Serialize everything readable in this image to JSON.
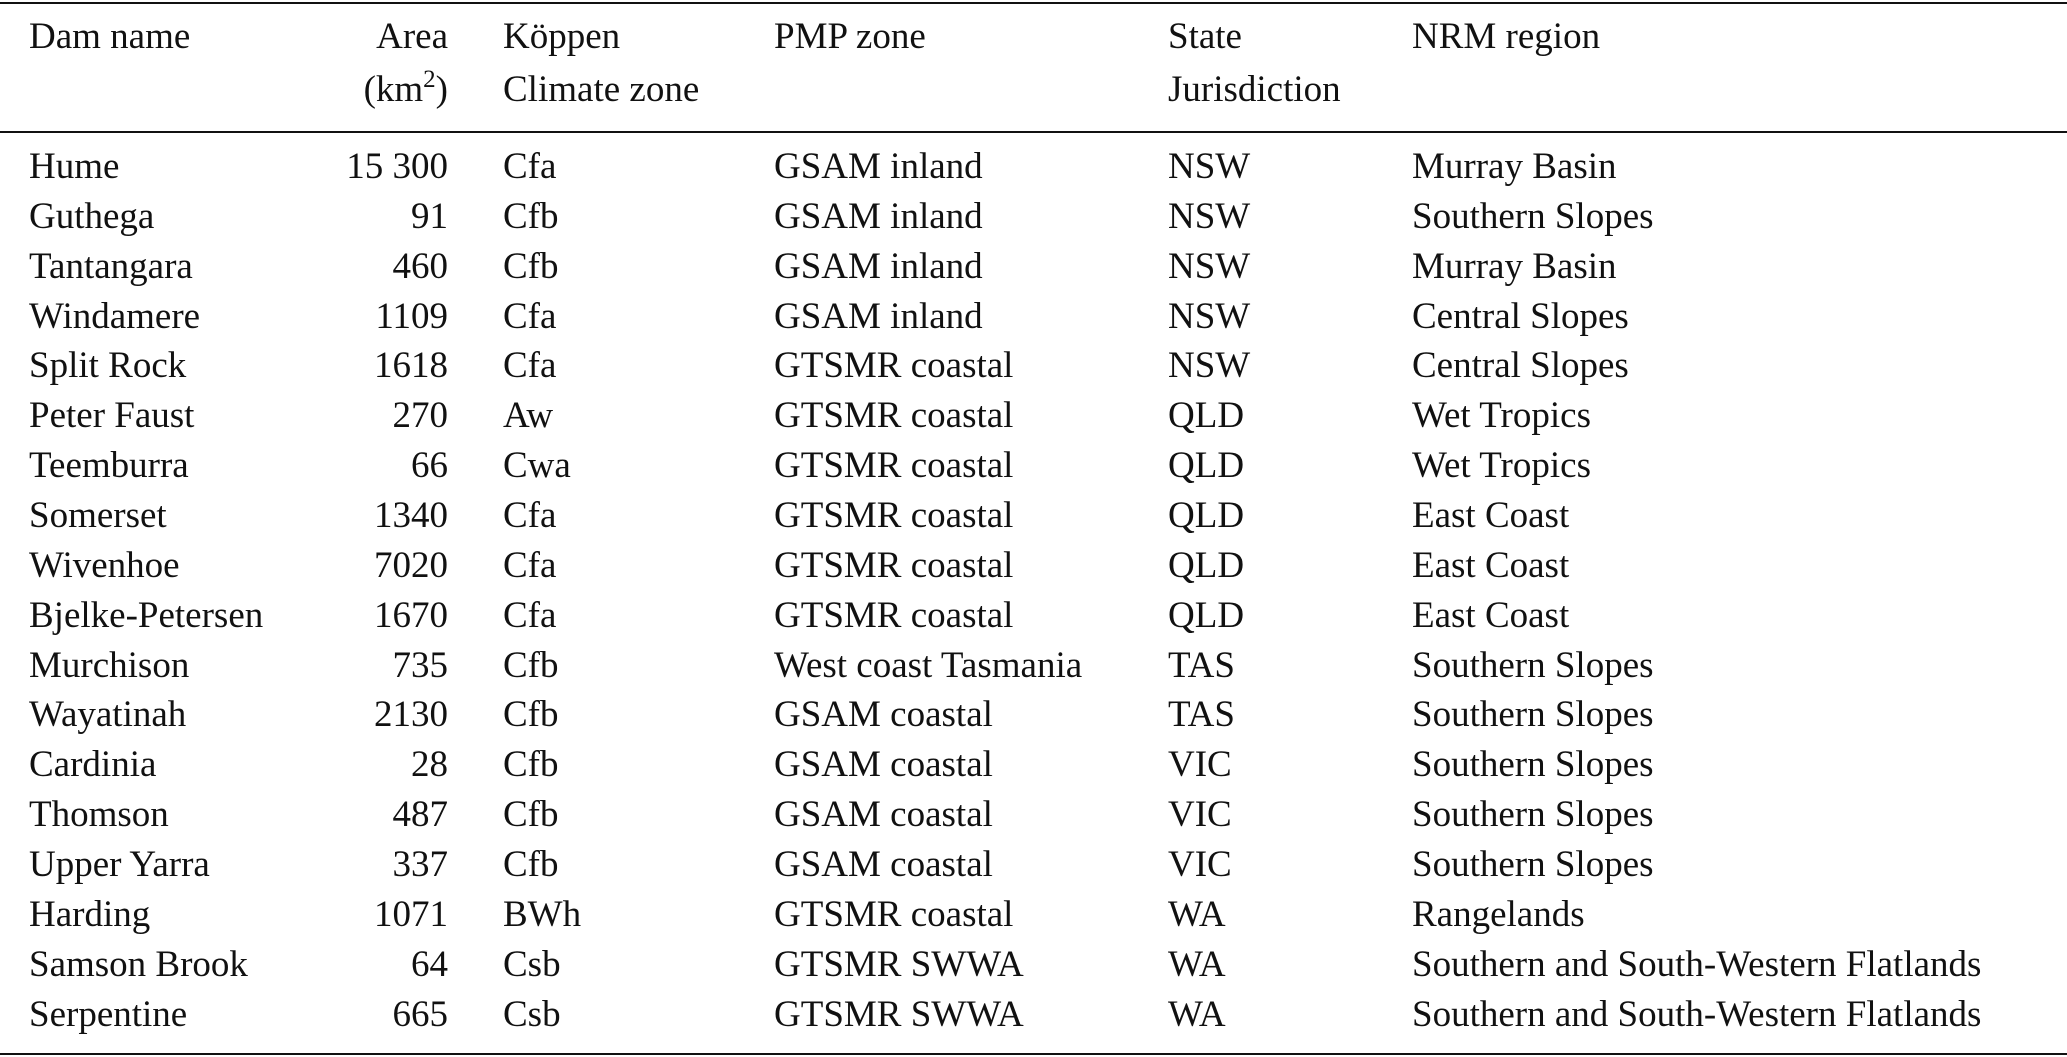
{
  "table": {
    "header": [
      {
        "lines": [
          "Dam name"
        ]
      },
      {
        "lines": [
          "Area"
        ],
        "unit_open": "(km",
        "unit_exp": "2",
        "unit_close": ")"
      },
      {
        "lines": [
          "Köppen",
          "Climate zone"
        ]
      },
      {
        "lines": [
          "PMP zone"
        ]
      },
      {
        "lines": [
          "State",
          "Jurisdiction"
        ]
      },
      {
        "lines": [
          "NRM region"
        ]
      }
    ],
    "rows": [
      [
        "Hume",
        "15 300",
        "Cfa",
        "GSAM inland",
        "NSW",
        "Murray Basin"
      ],
      [
        "Guthega",
        "91",
        "Cfb",
        "GSAM inland",
        "NSW",
        "Southern Slopes"
      ],
      [
        "Tantangara",
        "460",
        "Cfb",
        "GSAM inland",
        "NSW",
        "Murray Basin"
      ],
      [
        "Windamere",
        "1109",
        "Cfa",
        "GSAM inland",
        "NSW",
        "Central Slopes"
      ],
      [
        "Split Rock",
        "1618",
        "Cfa",
        "GTSMR coastal",
        "NSW",
        "Central Slopes"
      ],
      [
        "Peter Faust",
        "270",
        "Aw",
        "GTSMR coastal",
        "QLD",
        "Wet Tropics"
      ],
      [
        "Teemburra",
        "66",
        "Cwa",
        "GTSMR coastal",
        "QLD",
        "Wet Tropics"
      ],
      [
        "Somerset",
        "1340",
        "Cfa",
        "GTSMR coastal",
        "QLD",
        "East Coast"
      ],
      [
        "Wivenhoe",
        "7020",
        "Cfa",
        "GTSMR coastal",
        "QLD",
        "East Coast"
      ],
      [
        "Bjelke-Petersen",
        "1670",
        "Cfa",
        "GTSMR coastal",
        "QLD",
        "East Coast"
      ],
      [
        "Murchison",
        "735",
        "Cfb",
        "West coast Tasmania",
        "TAS",
        "Southern Slopes"
      ],
      [
        "Wayatinah",
        "2130",
        "Cfb",
        "GSAM coastal",
        "TAS",
        "Southern Slopes"
      ],
      [
        "Cardinia",
        "28",
        "Cfb",
        "GSAM coastal",
        "VIC",
        "Southern Slopes"
      ],
      [
        "Thomson",
        "487",
        "Cfb",
        "GSAM coastal",
        "VIC",
        "Southern Slopes"
      ],
      [
        "Upper Yarra",
        "337",
        "Cfb",
        "GSAM coastal",
        "VIC",
        "Southern Slopes"
      ],
      [
        "Harding",
        "1071",
        "BWh",
        "GTSMR coastal",
        "WA",
        "Rangelands"
      ],
      [
        "Samson Brook",
        "64",
        "Csb",
        "GTSMR SWWA",
        "WA",
        "Southern and South-Western Flatlands"
      ],
      [
        "Serpentine",
        "665",
        "Csb",
        "GTSMR SWWA",
        "WA",
        "Southern and South-Western Flatlands"
      ]
    ]
  }
}
